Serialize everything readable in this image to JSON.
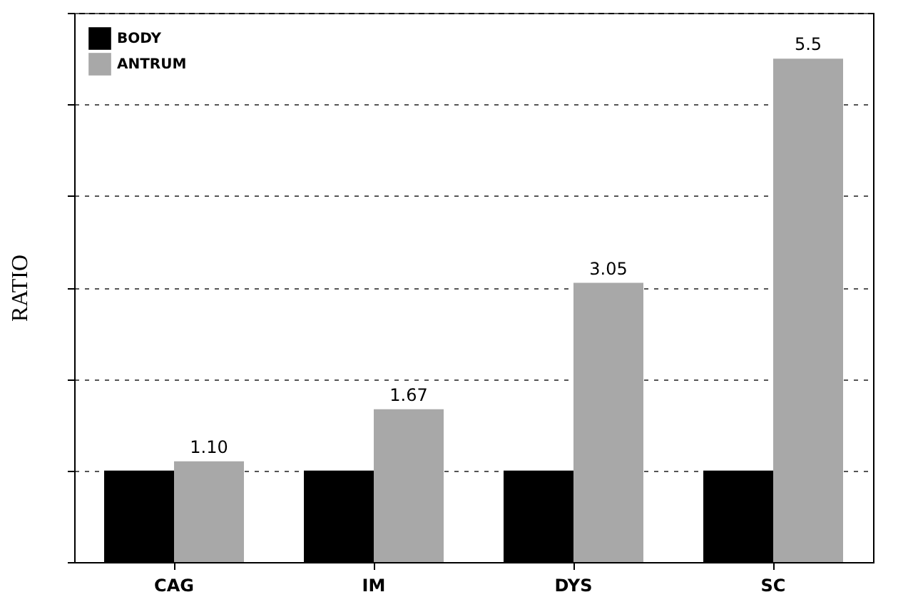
{
  "chart_data": {
    "type": "bar",
    "ylabel": "RATIO",
    "categories": [
      "CAG",
      "IM",
      "DYS",
      "SC"
    ],
    "series": [
      {
        "name": "BODY",
        "color": "#000000",
        "values": [
          1,
          1,
          1,
          1
        ]
      },
      {
        "name": "ANTRUM",
        "color": "#a8a8a8",
        "values": [
          1.1,
          1.67,
          3.05,
          5.5
        ],
        "value_labels": [
          "1.10",
          "1.67",
          "3.05",
          "5.5"
        ]
      }
    ],
    "ylim": [
      0,
      6
    ],
    "yticks": [
      {
        "value": 0,
        "label": null
      },
      {
        "value": 1,
        "label": null
      },
      {
        "value": 2,
        "label": null
      },
      {
        "value": 3,
        "label": null
      },
      {
        "value": 4,
        "label": null
      },
      {
        "value": 5,
        "label": null
      },
      {
        "value": 6,
        "label": null
      }
    ],
    "grid": "y",
    "legend": "top left"
  }
}
